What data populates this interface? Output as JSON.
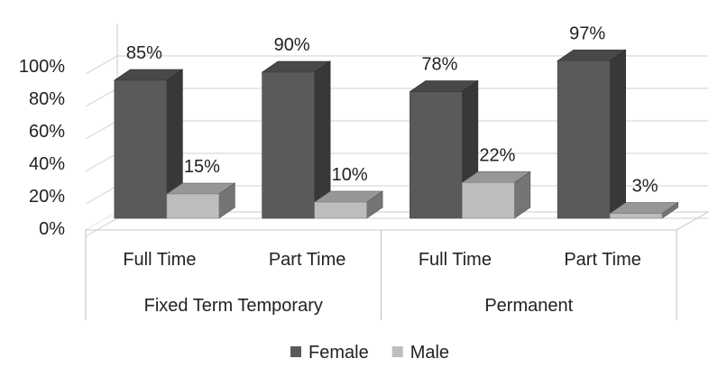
{
  "chart_data": {
    "type": "bar",
    "title": "",
    "xlabel": "",
    "ylabel": "",
    "groups": [
      {
        "label": "Fixed Term Temporary",
        "categories": [
          "Full Time",
          "Part Time"
        ]
      },
      {
        "label": "Permanent",
        "categories": [
          "Full Time",
          "Part Time"
        ]
      }
    ],
    "categories": [
      "Full Time",
      "Part Time",
      "Full Time",
      "Part Time"
    ],
    "series": [
      {
        "name": "Female",
        "values": [
          85,
          90,
          78,
          97
        ],
        "labels": [
          "85%",
          "90%",
          "78%",
          "97%"
        ],
        "color": "#5a5a5a"
      },
      {
        "name": "Male",
        "values": [
          15,
          10,
          22,
          3
        ],
        "labels": [
          "15%",
          "10%",
          "22%",
          "3%"
        ],
        "color": "#bdbdbd"
      }
    ],
    "ylim": [
      0,
      100
    ],
    "yticks": [
      0,
      20,
      40,
      60,
      80,
      100
    ],
    "ytick_labels": [
      "0%",
      "20%",
      "40%",
      "60%",
      "80%",
      "100%"
    ],
    "grid": true,
    "legend": "bottom",
    "style": "3d-clustered-column"
  }
}
